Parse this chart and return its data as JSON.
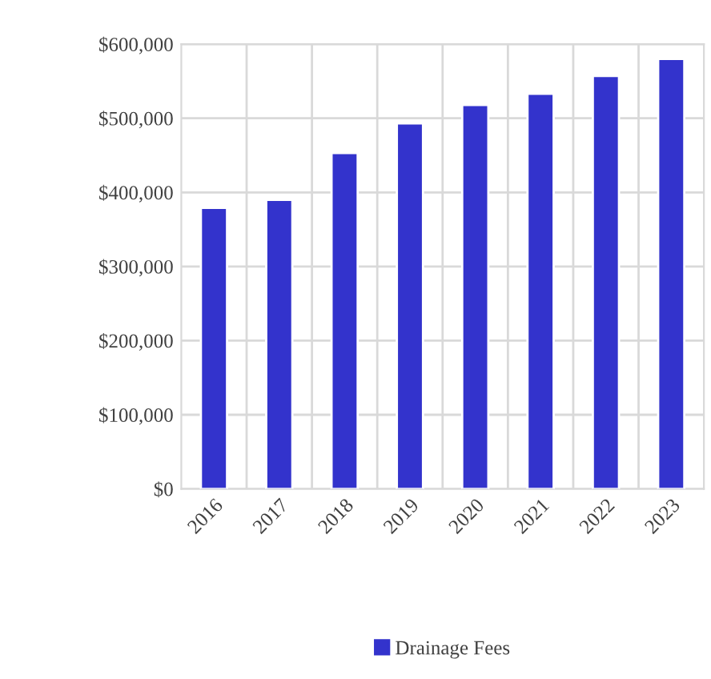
{
  "chart_data": {
    "type": "bar",
    "categories": [
      "2016",
      "2017",
      "2018",
      "2019",
      "2020",
      "2021",
      "2022",
      "2023"
    ],
    "series": [
      {
        "name": "Drainage Fees",
        "color": "#3333cc",
        "values": [
          379000,
          390000,
          453000,
          493000,
          518000,
          533000,
          557000,
          580000
        ]
      }
    ],
    "ylim": [
      0,
      600000
    ],
    "yticks": [
      {
        "value": 0,
        "label": "$0"
      },
      {
        "value": 100000,
        "label": "$100,000"
      },
      {
        "value": 200000,
        "label": "$200,000"
      },
      {
        "value": 300000,
        "label": "$300,000"
      },
      {
        "value": 400000,
        "label": "$400,000"
      },
      {
        "value": 500000,
        "label": "$500,000"
      },
      {
        "value": 600000,
        "label": "$600,000"
      }
    ],
    "grid": true,
    "legend": "bottom"
  }
}
